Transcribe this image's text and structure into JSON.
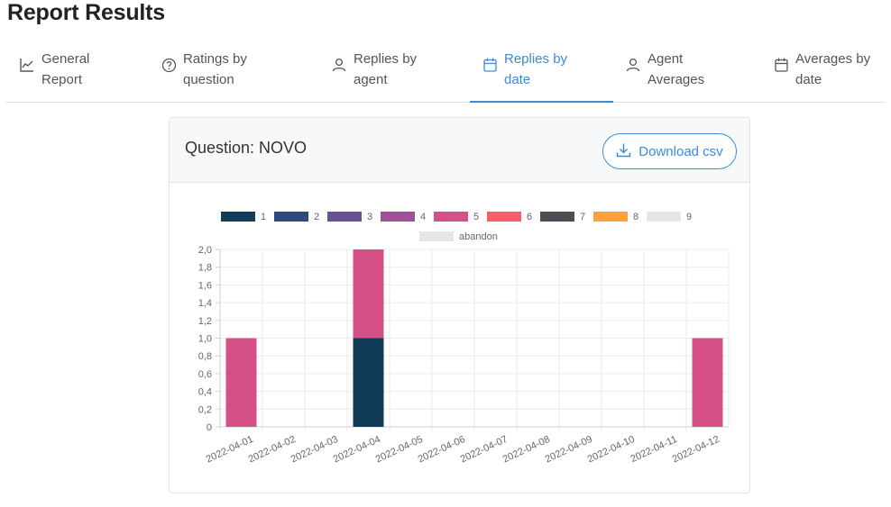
{
  "page": {
    "title": "Report Results"
  },
  "tabs": [
    {
      "label_line1": "General",
      "label_line2": "Report",
      "icon": "line-chart-icon"
    },
    {
      "label_line1": "Ratings by",
      "label_line2": "question",
      "icon": "question-circle-icon"
    },
    {
      "label_line1": "Replies by",
      "label_line2": "agent",
      "icon": "user-icon"
    },
    {
      "label_line1": "Replies by",
      "label_line2": "date",
      "icon": "calendar-icon",
      "active": true
    },
    {
      "label_line1": "Agent",
      "label_line2": "Averages",
      "icon": "user-icon"
    },
    {
      "label_line1": "Averages by",
      "label_line2": "date",
      "icon": "calendar-icon"
    }
  ],
  "card": {
    "title": "Question: NOVO",
    "download_label": "Download csv"
  },
  "colors": {
    "accent": "#3a8bd8"
  },
  "chart_data": {
    "type": "bar",
    "stacked": true,
    "categories": [
      "2022-04-01",
      "2022-04-02",
      "2022-04-03",
      "2022-04-04",
      "2022-04-05",
      "2022-04-06",
      "2022-04-07",
      "2022-04-08",
      "2022-04-09",
      "2022-04-10",
      "2022-04-11",
      "2022-04-12"
    ],
    "series": [
      {
        "name": "1",
        "color": "#123b57",
        "values": [
          0,
          0,
          0,
          1,
          0,
          0,
          0,
          0,
          0,
          0,
          0,
          0
        ]
      },
      {
        "name": "2",
        "color": "#2f4b7c",
        "values": [
          0,
          0,
          0,
          0,
          0,
          0,
          0,
          0,
          0,
          0,
          0,
          0
        ]
      },
      {
        "name": "3",
        "color": "#665191",
        "values": [
          0,
          0,
          0,
          0,
          0,
          0,
          0,
          0,
          0,
          0,
          0,
          0
        ]
      },
      {
        "name": "4",
        "color": "#a05195",
        "values": [
          0,
          0,
          0,
          0,
          0,
          0,
          0,
          0,
          0,
          0,
          0,
          0
        ]
      },
      {
        "name": "5",
        "color": "#d45087",
        "values": [
          1,
          0,
          0,
          1,
          0,
          0,
          0,
          0,
          0,
          0,
          0,
          1
        ]
      },
      {
        "name": "6",
        "color": "#f95d6a",
        "values": [
          0,
          0,
          0,
          0,
          0,
          0,
          0,
          0,
          0,
          0,
          0,
          0
        ]
      },
      {
        "name": "7",
        "color": "#4b4f54",
        "values": [
          0,
          0,
          0,
          0,
          0,
          0,
          0,
          0,
          0,
          0,
          0,
          0
        ]
      },
      {
        "name": "8",
        "color": "#ffa03a",
        "values": [
          0,
          0,
          0,
          0,
          0,
          0,
          0,
          0,
          0,
          0,
          0,
          0
        ]
      },
      {
        "name": "9",
        "color": "#e6e6e6",
        "values": [
          0,
          0,
          0,
          0,
          0,
          0,
          0,
          0,
          0,
          0,
          0,
          0
        ]
      },
      {
        "name": "abandon",
        "color": "#e6e6e6",
        "values": [
          0,
          0,
          0,
          0,
          0,
          0,
          0,
          0,
          0,
          0,
          0,
          0
        ]
      }
    ],
    "ylim": [
      0,
      2
    ],
    "yticks": [
      "0",
      "0,2",
      "0,4",
      "0,6",
      "0,8",
      "1,0",
      "1,2",
      "1,4",
      "1,6",
      "1,8",
      "2,0"
    ],
    "grid": true,
    "legend_position": "top"
  }
}
